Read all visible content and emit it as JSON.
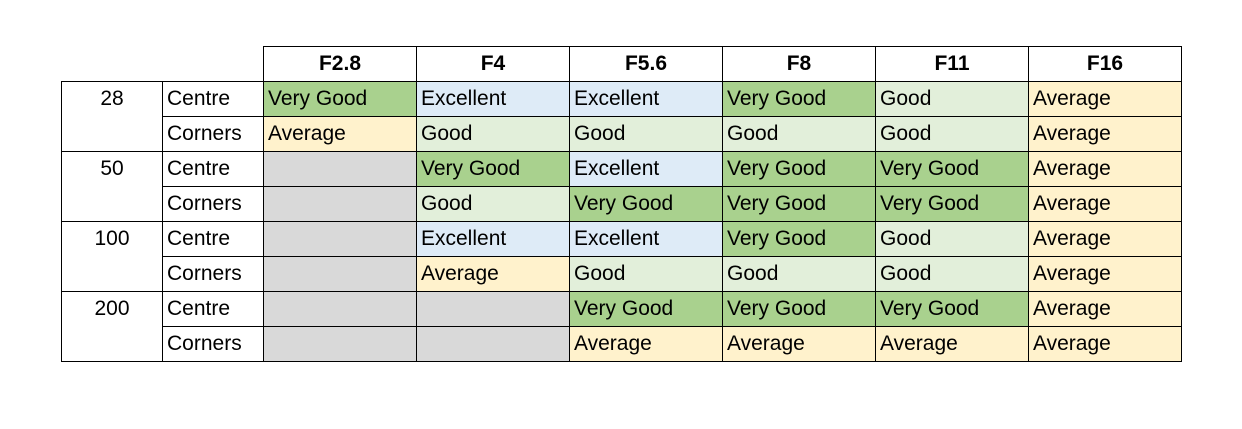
{
  "colors": {
    "Excellent": "#deebf7",
    "Very Good": "#a9d18e",
    "Good": "#e2efda",
    "Average": "#fff2cc",
    "na": "#d9d9d9"
  },
  "header": {
    "apertures": [
      "F2.8",
      "F4",
      "F5.6",
      "F8",
      "F11",
      "F16"
    ]
  },
  "groups": [
    {
      "focal": "28",
      "rows": [
        {
          "position": "Centre",
          "ratings": [
            "Very Good",
            "Excellent",
            "Excellent",
            "Very Good",
            "Good",
            "Average"
          ]
        },
        {
          "position": "Corners",
          "ratings": [
            "Average",
            "Good",
            "Good",
            "Good",
            "Good",
            "Average"
          ]
        }
      ]
    },
    {
      "focal": "50",
      "rows": [
        {
          "position": "Centre",
          "ratings": [
            "",
            "Very Good",
            "Excellent",
            "Very Good",
            "Very Good",
            "Average"
          ]
        },
        {
          "position": "Corners",
          "ratings": [
            "",
            "Good",
            "Very Good",
            "Very Good",
            "Very Good",
            "Average"
          ]
        }
      ]
    },
    {
      "focal": "100",
      "rows": [
        {
          "position": "Centre",
          "ratings": [
            "",
            "Excellent",
            "Excellent",
            "Very Good",
            "Good",
            "Average"
          ]
        },
        {
          "position": "Corners",
          "ratings": [
            "",
            "Average",
            "Good",
            "Good",
            "Good",
            "Average"
          ]
        }
      ]
    },
    {
      "focal": "200",
      "rows": [
        {
          "position": "Centre",
          "ratings": [
            "",
            "",
            "Very Good",
            "Very Good",
            "Very Good",
            "Average"
          ]
        },
        {
          "position": "Corners",
          "ratings": [
            "",
            "",
            "Average",
            "Average",
            "Average",
            "Average"
          ]
        }
      ]
    }
  ]
}
